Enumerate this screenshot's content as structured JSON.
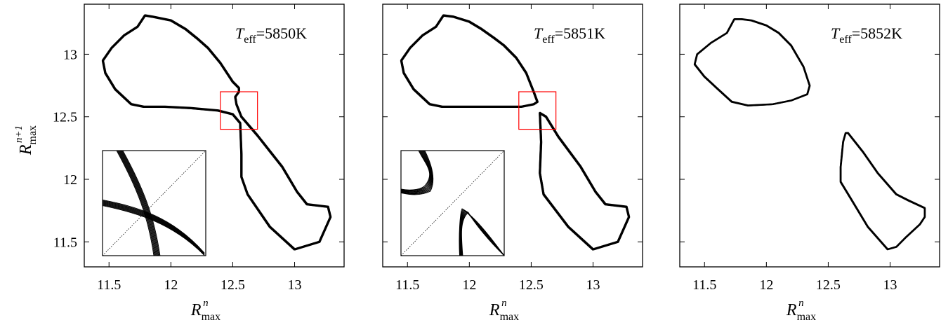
{
  "figure": {
    "ylabel_main": "R",
    "ylabel_sub": "max",
    "ylabel_sup": "n+1",
    "xlabel_main": "R",
    "xlabel_sub": "max",
    "xlabel_sup": "n",
    "teff_symbol": "T",
    "teff_sub": "eff"
  },
  "chart_data": [
    {
      "type": "scatter",
      "title": "T_eff=5850K",
      "teff_value": "=5850K",
      "xlim": [
        11.3,
        13.4
      ],
      "ylim": [
        11.3,
        13.4
      ],
      "xticks": [
        11.5,
        12,
        12.5,
        13
      ],
      "xtick_labels": [
        "11.5",
        "12",
        "12.5",
        "13"
      ],
      "yticks": [
        11.5,
        12,
        12.5,
        13
      ],
      "ytick_labels": [
        "11.5",
        "12",
        "12.5",
        "13"
      ],
      "zoom_box": {
        "x": [
          12.4,
          12.7
        ],
        "y": [
          12.4,
          12.7
        ],
        "color": "#ff0000"
      },
      "inset": "crossing branches near the diagonal",
      "series": [
        {
          "closed": true,
          "x": [
            11.79,
            11.73,
            11.62,
            11.52,
            11.45,
            11.47,
            11.55,
            11.68,
            11.78,
            11.95,
            12.15,
            12.38,
            12.5,
            12.56,
            12.57,
            12.57,
            12.62,
            12.8,
            13.0,
            13.2,
            13.29,
            13.27,
            13.1,
            13.02,
            12.9,
            12.7,
            12.57,
            12.53,
            12.52,
            12.55,
            12.55,
            12.5,
            12.4,
            12.3,
            12.22,
            12.12,
            12.0,
            11.85
          ],
          "y": [
            13.31,
            13.22,
            13.15,
            13.05,
            12.95,
            12.85,
            12.72,
            12.6,
            12.58,
            12.58,
            12.57,
            12.55,
            12.52,
            12.45,
            12.2,
            12.02,
            11.88,
            11.62,
            11.44,
            11.5,
            11.7,
            11.78,
            11.8,
            11.9,
            12.1,
            12.35,
            12.5,
            12.6,
            12.66,
            12.7,
            12.73,
            12.78,
            12.93,
            13.05,
            13.12,
            13.2,
            13.27,
            13.3
          ]
        }
      ]
    },
    {
      "type": "scatter",
      "title": "T_eff=5851K",
      "teff_value": "=5851K",
      "xlim": [
        11.3,
        13.4
      ],
      "ylim": [
        11.3,
        13.4
      ],
      "xticks": [
        11.5,
        12,
        12.5,
        13
      ],
      "xtick_labels": [
        "11.5",
        "12",
        "12.5",
        "13"
      ],
      "yticks": [
        11.5,
        12,
        12.5,
        13
      ],
      "ytick_labels": [
        "11.5",
        "12",
        "12.5",
        "13"
      ],
      "zoom_box": {
        "x": [
          12.4,
          12.7
        ],
        "y": [
          12.4,
          12.7
        ],
        "color": "#ff0000"
      },
      "inset": "two separated branches near the diagonal",
      "series": [
        {
          "closed": true,
          "x": [
            11.79,
            11.73,
            11.62,
            11.52,
            11.45,
            11.47,
            11.55,
            11.68,
            11.78,
            11.95,
            12.15,
            12.3,
            12.42,
            12.52,
            12.55,
            12.52,
            12.46,
            12.38,
            12.28,
            12.2,
            12.1,
            12.0,
            11.87
          ],
          "y": [
            13.31,
            13.22,
            13.15,
            13.05,
            12.95,
            12.85,
            12.72,
            12.6,
            12.58,
            12.58,
            12.58,
            12.58,
            12.58,
            12.6,
            12.62,
            12.7,
            12.85,
            12.97,
            13.07,
            13.13,
            13.2,
            13.26,
            13.3
          ]
        },
        {
          "closed": true,
          "x": [
            12.57,
            12.58,
            12.57,
            12.6,
            12.8,
            13.0,
            13.2,
            13.29,
            13.27,
            13.1,
            13.02,
            12.9,
            12.72,
            12.62
          ],
          "y": [
            12.53,
            12.3,
            12.05,
            11.88,
            11.62,
            11.44,
            11.5,
            11.7,
            11.78,
            11.8,
            11.9,
            12.1,
            12.34,
            12.5
          ]
        }
      ]
    },
    {
      "type": "scatter",
      "title": "T_eff=5852K",
      "teff_value": "=5852K",
      "xlim": [
        11.3,
        13.4
      ],
      "ylim": [
        11.3,
        13.4
      ],
      "xticks": [
        11.5,
        12,
        12.5,
        13
      ],
      "xtick_labels": [
        "11.5",
        "12",
        "12.5",
        "13"
      ],
      "yticks": [
        11.5,
        12,
        12.5,
        13
      ],
      "ytick_labels": [
        "11.5",
        "12",
        "12.5",
        "13"
      ],
      "series": [
        {
          "closed": true,
          "x": [
            11.74,
            11.68,
            11.55,
            11.44,
            11.42,
            11.5,
            11.62,
            11.72,
            11.85,
            12.05,
            12.2,
            12.33,
            12.35,
            12.3,
            12.2,
            12.1,
            12.0,
            11.88,
            11.8
          ],
          "y": [
            13.28,
            13.17,
            13.09,
            13.0,
            12.92,
            12.82,
            12.71,
            12.62,
            12.59,
            12.6,
            12.63,
            12.68,
            12.75,
            12.9,
            13.07,
            13.17,
            13.23,
            13.27,
            13.28
          ]
        },
        {
          "closed": true,
          "x": [
            12.64,
            12.62,
            12.6,
            12.6,
            12.68,
            12.82,
            12.98,
            13.05,
            13.12,
            13.24,
            13.28,
            13.28,
            13.15,
            13.05,
            12.9,
            12.78,
            12.7,
            12.66
          ],
          "y": [
            12.37,
            12.3,
            12.1,
            11.98,
            11.85,
            11.62,
            11.44,
            11.46,
            11.53,
            11.64,
            11.7,
            11.77,
            11.83,
            11.88,
            12.05,
            12.22,
            12.32,
            12.37
          ]
        }
      ]
    }
  ]
}
